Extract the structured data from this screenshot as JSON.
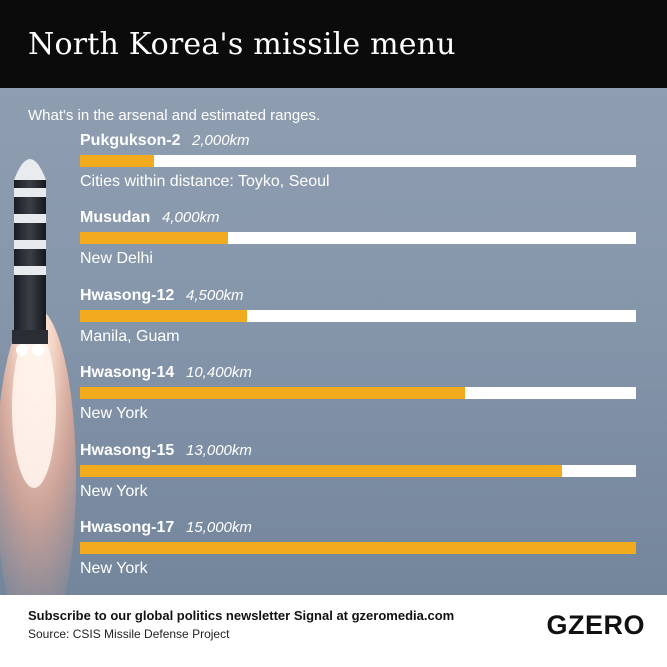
{
  "header": {
    "title": "North Korea's missile menu"
  },
  "subtitle": "What's in the arsenal and estimated ranges.",
  "chart_data": {
    "type": "bar",
    "orientation": "horizontal",
    "title": "North Korea's missile menu",
    "subtitle": "What's in the arsenal and estimated ranges.",
    "xlim": [
      0,
      15000
    ],
    "unit": "km",
    "categories": [
      "Pukgukson-2",
      "Musudan",
      "Hwasong-12",
      "Hwasong-14",
      "Hwasong-15",
      "Hwasong-17"
    ],
    "values": [
      2000,
      4000,
      4500,
      10400,
      13000,
      15000
    ],
    "value_labels": [
      "2,000km",
      "4,000km",
      "4,500km",
      "10,400km",
      "13,000km",
      "15,000km"
    ],
    "cities": [
      "Cities within distance: Toyko, Seoul",
      "New Delhi",
      "Manila, Guam",
      "New York",
      "New York",
      "New York"
    ],
    "colors": {
      "fill": "#f2ab1c",
      "track": "#ffffff"
    },
    "grid": false,
    "legend": "none"
  },
  "footer": {
    "cta": "Subscribe to our global politics newsletter Signal at gzeromedia.com",
    "source": "Source: CSIS Missile Defense Project",
    "logo": "GZERO"
  },
  "colors": {
    "header_bg": "#0b0b0b",
    "bar_fill": "#f2ab1c",
    "panel_bg": "#8797ab"
  },
  "icons": {
    "rocket": "missile-launch-photo"
  }
}
